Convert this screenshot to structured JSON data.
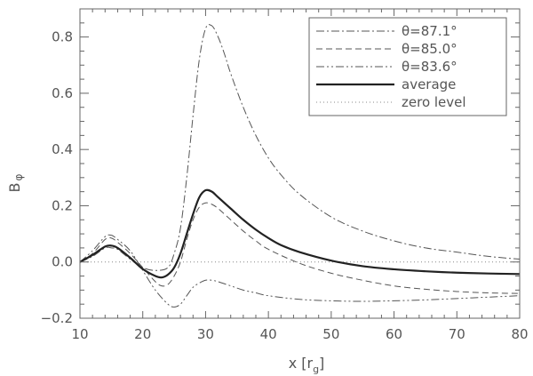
{
  "chart_data": {
    "type": "line",
    "xlabel": "x [r",
    "xlabel_sub": "g",
    "xlabel_close": "]",
    "ylabel": "B",
    "ylabel_sub": "φ",
    "xlim": [
      10,
      80
    ],
    "ylim": [
      -0.2,
      0.9
    ],
    "xticks": [
      10,
      20,
      30,
      40,
      50,
      60,
      70,
      80
    ],
    "yticks": [
      -0.2,
      0.0,
      0.2,
      0.4,
      0.6,
      0.8
    ],
    "ytick_labels": [
      "−0.2",
      "0.0",
      "0.2",
      "0.4",
      "0.6",
      "0.8"
    ],
    "grid": false,
    "legend_position": "top-right",
    "series": [
      {
        "name": "θ=87.1°",
        "style": "dashdot",
        "x": [
          10,
          12,
          14,
          15,
          16,
          18,
          20,
          22,
          24,
          25,
          26,
          27,
          28,
          29,
          30,
          31,
          32,
          33,
          34,
          36,
          38,
          40,
          42,
          45,
          50,
          55,
          60,
          65,
          70,
          75,
          80
        ],
        "y": [
          0.0,
          0.02,
          0.05,
          0.05,
          0.045,
          0.01,
          -0.02,
          -0.03,
          -0.02,
          0.03,
          0.12,
          0.3,
          0.52,
          0.72,
          0.83,
          0.84,
          0.8,
          0.74,
          0.67,
          0.55,
          0.45,
          0.37,
          0.31,
          0.24,
          0.16,
          0.11,
          0.075,
          0.05,
          0.035,
          0.02,
          0.01
        ]
      },
      {
        "name": "θ=85.0°",
        "style": "dashed",
        "x": [
          10,
          12,
          14,
          15,
          16,
          18,
          20,
          22,
          23,
          24,
          25,
          26,
          27,
          28,
          29,
          30,
          31,
          32,
          34,
          36,
          38,
          40,
          45,
          50,
          55,
          60,
          65,
          70,
          75,
          80
        ],
        "y": [
          0.0,
          0.03,
          0.08,
          0.085,
          0.07,
          0.03,
          -0.02,
          -0.07,
          -0.085,
          -0.08,
          -0.05,
          0.0,
          0.08,
          0.15,
          0.195,
          0.21,
          0.205,
          0.19,
          0.15,
          0.11,
          0.075,
          0.045,
          -0.005,
          -0.04,
          -0.065,
          -0.085,
          -0.097,
          -0.105,
          -0.11,
          -0.112
        ]
      },
      {
        "name": "θ=83.6°",
        "style": "dashdotdot",
        "x": [
          10,
          12,
          14,
          15,
          16,
          18,
          20,
          22,
          24,
          25,
          26,
          27,
          28,
          29,
          30,
          31,
          32,
          34,
          36,
          38,
          40,
          45,
          50,
          55,
          60,
          65,
          70,
          75,
          80
        ],
        "y": [
          0.0,
          0.04,
          0.09,
          0.095,
          0.08,
          0.04,
          -0.03,
          -0.1,
          -0.15,
          -0.16,
          -0.15,
          -0.12,
          -0.09,
          -0.075,
          -0.065,
          -0.065,
          -0.07,
          -0.085,
          -0.1,
          -0.11,
          -0.12,
          -0.133,
          -0.138,
          -0.14,
          -0.138,
          -0.135,
          -0.13,
          -0.125,
          -0.12
        ]
      },
      {
        "name": "average",
        "style": "solid-thick",
        "x": [
          10,
          12,
          14,
          15,
          16,
          18,
          20,
          22,
          23,
          24,
          25,
          26,
          27,
          28,
          29,
          30,
          31,
          32,
          34,
          36,
          38,
          40,
          42,
          45,
          50,
          55,
          60,
          65,
          70,
          75,
          80
        ],
        "y": [
          0.0,
          0.025,
          0.055,
          0.058,
          0.05,
          0.015,
          -0.025,
          -0.05,
          -0.055,
          -0.045,
          -0.02,
          0.03,
          0.1,
          0.17,
          0.23,
          0.255,
          0.25,
          0.23,
          0.19,
          0.15,
          0.115,
          0.085,
          0.06,
          0.035,
          0.005,
          -0.015,
          -0.026,
          -0.033,
          -0.038,
          -0.041,
          -0.043
        ]
      },
      {
        "name": "zero level",
        "style": "dotted",
        "x": [
          10,
          80
        ],
        "y": [
          0.0,
          0.0
        ]
      }
    ]
  }
}
